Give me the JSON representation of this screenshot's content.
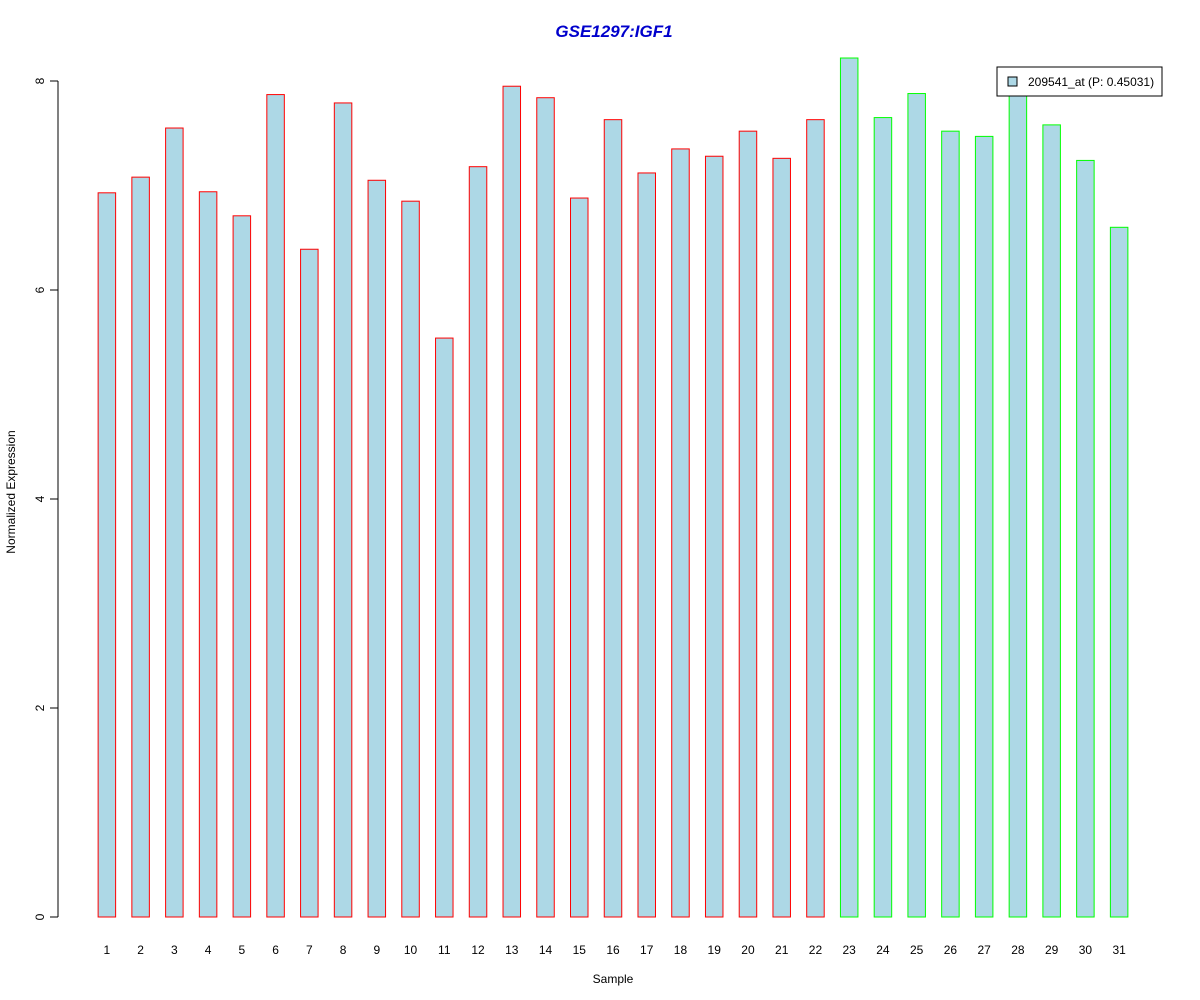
{
  "chart_data": {
    "type": "bar",
    "title": "GSE1297:IGF1",
    "xlabel": "Sample",
    "ylabel": "Normalized Expression",
    "ylim": [
      0,
      8.2
    ],
    "yticks": [
      0,
      2,
      4,
      6,
      8
    ],
    "grid": false,
    "legend_position": "top-right",
    "categories": [
      "1",
      "2",
      "3",
      "4",
      "5",
      "6",
      "7",
      "8",
      "9",
      "10",
      "11",
      "12",
      "13",
      "14",
      "15",
      "16",
      "17",
      "18",
      "19",
      "20",
      "21",
      "22",
      "23",
      "24",
      "25",
      "26",
      "27",
      "28",
      "29",
      "30",
      "31"
    ],
    "series": [
      {
        "name": "209541_at (P: 0.45031)",
        "fill": "#add8e6",
        "values": [
          6.93,
          7.08,
          7.55,
          6.94,
          6.71,
          7.87,
          6.39,
          7.79,
          7.05,
          6.85,
          5.54,
          7.18,
          7.95,
          7.84,
          6.88,
          7.63,
          7.12,
          7.35,
          7.28,
          7.52,
          7.26,
          7.63,
          8.22,
          7.65,
          7.88,
          7.52,
          7.47,
          7.92,
          7.58,
          7.24,
          6.6
        ]
      }
    ],
    "groups": [
      {
        "border": "#ff0000",
        "from": 1,
        "to": 22
      },
      {
        "border": "#00ff00",
        "from": 23,
        "to": 31
      }
    ],
    "colors": {
      "title": "#0000cc",
      "bar_fill": "#add8e6",
      "group1_border": "#ff0000",
      "group2_border": "#00ff00"
    }
  }
}
